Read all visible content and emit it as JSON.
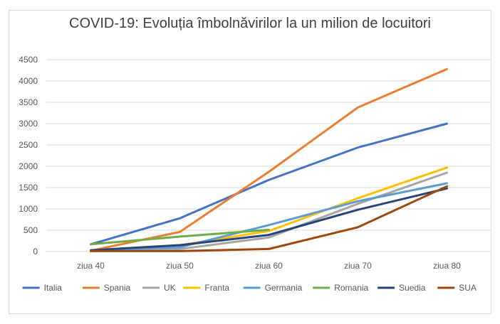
{
  "chart_data": {
    "type": "line",
    "title": "COVID-19: Evoluția îmbolnăvirilor la un milion de locuitori",
    "categories": [
      "ziua 40",
      "ziua 50",
      "ziua 60",
      "ziua 70",
      "ziua 80"
    ],
    "ylim": [
      0,
      4500
    ],
    "yticks": [
      0,
      500,
      1000,
      1500,
      2000,
      2500,
      3000,
      3500,
      4000,
      4500
    ],
    "grid": "horizontal",
    "legend_position": "bottom",
    "series": [
      {
        "name": "Italia",
        "color": "#4472C4",
        "values": [
          170,
          780,
          1680,
          2440,
          3000
        ]
      },
      {
        "name": "Spania",
        "color": "#ED7D31",
        "values": [
          20,
          460,
          1870,
          3380,
          4280
        ]
      },
      {
        "name": "UK",
        "color": "#A5A5A5",
        "values": [
          10,
          60,
          330,
          1120,
          1850
        ]
      },
      {
        "name": "Franta",
        "color": "#FFC000",
        "values": [
          30,
          150,
          480,
          1250,
          1970
        ]
      },
      {
        "name": "Germania",
        "color": "#5B9BD5",
        "values": [
          20,
          100,
          620,
          1180,
          1600
        ]
      },
      {
        "name": "Romania",
        "color": "#70AD47",
        "values": [
          170,
          350,
          510,
          null,
          null
        ]
      },
      {
        "name": "Suedia",
        "color": "#264478",
        "values": [
          30,
          150,
          390,
          980,
          1480
        ]
      },
      {
        "name": "SUA",
        "color": "#9E480E",
        "values": [
          10,
          10,
          60,
          570,
          1530
        ]
      }
    ]
  }
}
